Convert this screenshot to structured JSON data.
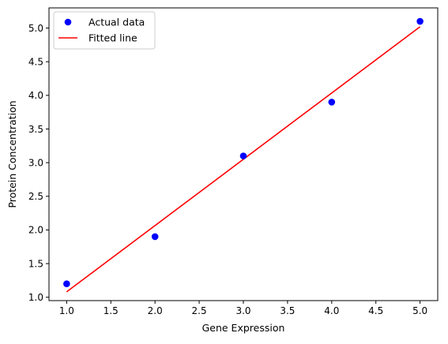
{
  "chart_data": {
    "type": "scatter",
    "title": "",
    "xlabel": "Gene Expression",
    "ylabel": "Protein Concentration",
    "xlim": [
      0.8,
      5.2
    ],
    "ylim": [
      0.95,
      5.3
    ],
    "xticks": [
      1.0,
      1.5,
      2.0,
      2.5,
      3.0,
      3.5,
      4.0,
      4.5,
      5.0
    ],
    "xtick_labels": [
      "1.0",
      "1.5",
      "2.0",
      "2.5",
      "3.0",
      "3.5",
      "4.0",
      "4.5",
      "5.0"
    ],
    "yticks": [
      1.0,
      1.5,
      2.0,
      2.5,
      3.0,
      3.5,
      4.0,
      4.5,
      5.0
    ],
    "ytick_labels": [
      "1.0",
      "1.5",
      "2.0",
      "2.5",
      "3.0",
      "3.5",
      "4.0",
      "4.5",
      "5.0"
    ],
    "grid": false,
    "legend_position": "top-left",
    "series": [
      {
        "name": "Actual data",
        "kind": "scatter",
        "color": "#0000ff",
        "x": [
          1,
          2,
          3,
          4,
          5
        ],
        "y": [
          1.2,
          1.9,
          3.1,
          3.9,
          5.1
        ]
      },
      {
        "name": "Fitted line",
        "kind": "line",
        "color": "#ff0000",
        "x": [
          1,
          5
        ],
        "y": [
          1.08,
          5.02
        ]
      }
    ]
  }
}
